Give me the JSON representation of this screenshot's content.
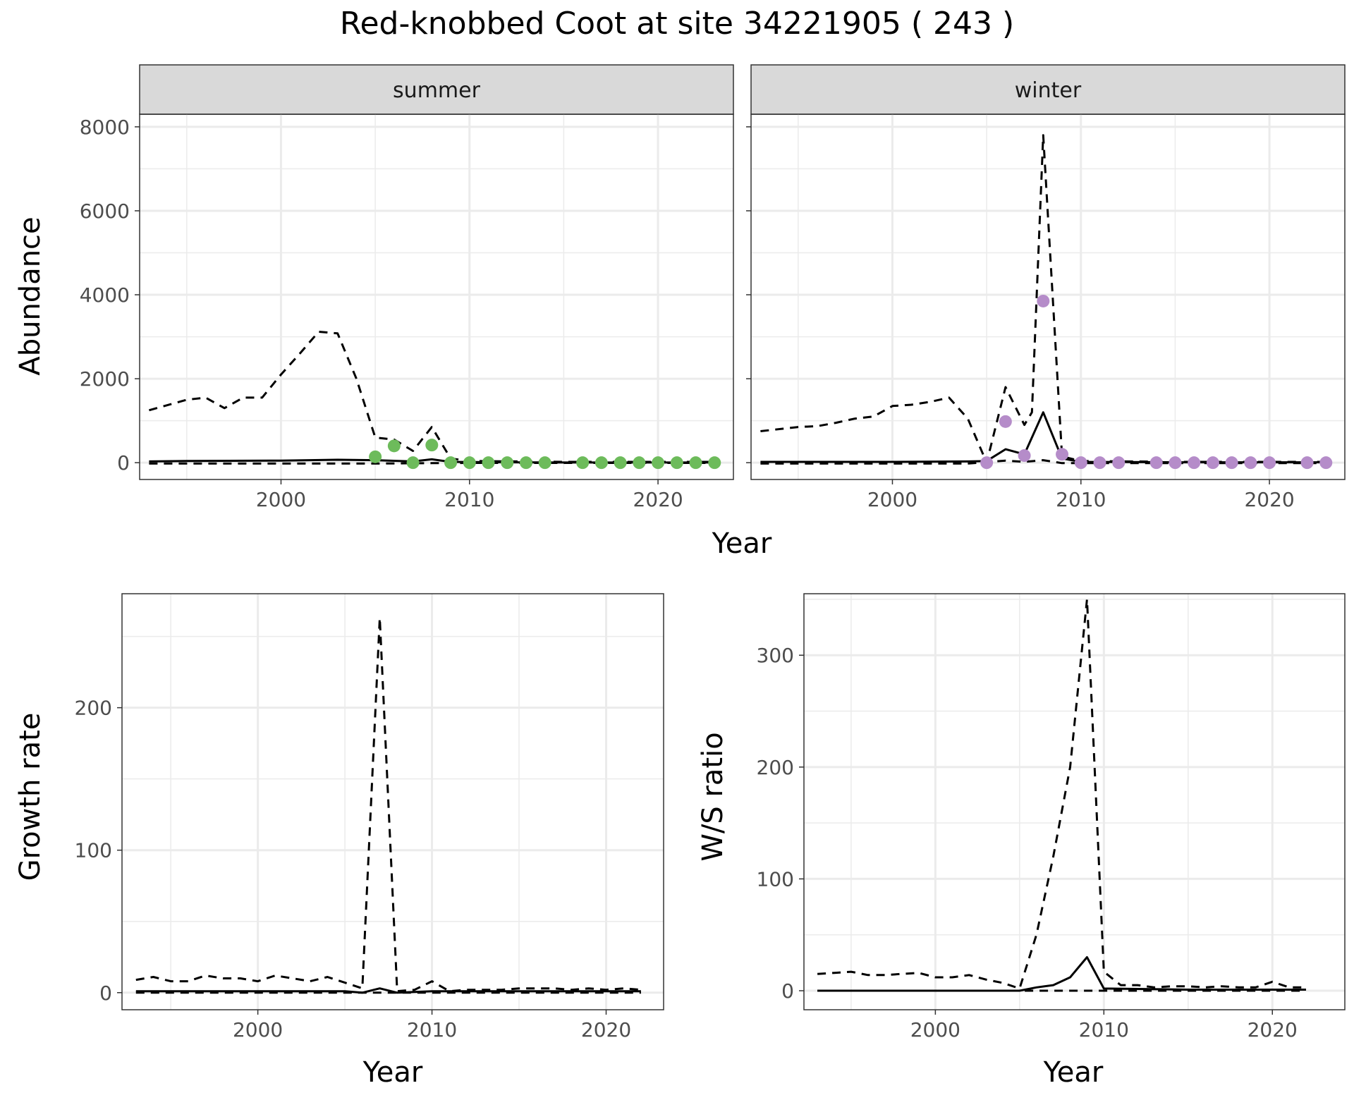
{
  "title": "Red-knobbed Coot at site 34221905 ( 243 )",
  "colors": {
    "summer_points": "#6dbb5b",
    "winter_points": "#b58cc9",
    "lines": "#000000",
    "strip_bg": "#d9d9d9",
    "grid": "#ebebeb"
  },
  "chart_data": [
    {
      "type": "line",
      "panel": "summer",
      "strip_label": "summer",
      "xlabel": "Year",
      "ylabel": "Abundance",
      "xlim": [
        1992.5,
        2024
      ],
      "ylim": [
        -400,
        8300
      ],
      "x_ticks": [
        2000,
        2010,
        2020
      ],
      "y_ticks": [
        0,
        2000,
        4000,
        6000,
        8000
      ],
      "grid": true,
      "series": [
        {
          "style": "solid",
          "x": [
            1993,
            1995,
            2000,
            2003,
            2005,
            2007,
            2008,
            2009,
            2012,
            2015,
            2020,
            2023
          ],
          "y": [
            30,
            40,
            50,
            70,
            60,
            30,
            80,
            20,
            10,
            5,
            5,
            5
          ]
        },
        {
          "style": "dashed",
          "x": [
            1993,
            1995,
            2000,
            2005,
            2008,
            2010,
            2015,
            2020,
            2023
          ],
          "y": [
            -20,
            -20,
            -20,
            -20,
            -10,
            -5,
            -5,
            -5,
            -5
          ]
        },
        {
          "style": "dashed",
          "x": [
            1993,
            1995,
            1996,
            1997,
            1998,
            1999,
            2000,
            2001,
            2002,
            2003,
            2004,
            2005,
            2006,
            2007,
            2008,
            2009,
            2010,
            2015,
            2020,
            2023
          ],
          "y": [
            1250,
            1500,
            1550,
            1300,
            1550,
            1550,
            2100,
            2600,
            3120,
            3080,
            2000,
            600,
            550,
            280,
            850,
            100,
            40,
            20,
            20,
            20
          ]
        }
      ],
      "points": {
        "x": [
          2005,
          2006,
          2007,
          2008,
          2009,
          2010,
          2011,
          2012,
          2013,
          2014,
          2016,
          2017,
          2018,
          2019,
          2020,
          2021,
          2022,
          2023
        ],
        "y": [
          140,
          400,
          0,
          420,
          0,
          0,
          0,
          0,
          0,
          0,
          0,
          0,
          0,
          0,
          0,
          0,
          0,
          0
        ]
      }
    },
    {
      "type": "line",
      "panel": "winter",
      "strip_label": "winter",
      "xlabel": "Year",
      "ylabel": "",
      "xlim": [
        1992.5,
        2024
      ],
      "ylim": [
        -400,
        8300
      ],
      "x_ticks": [
        2000,
        2010,
        2020
      ],
      "y_ticks": [
        0,
        2000,
        4000,
        6000,
        8000
      ],
      "grid": true,
      "series": [
        {
          "style": "solid",
          "x": [
            1993,
            2000,
            2004,
            2005,
            2006,
            2007,
            2008,
            2009,
            2010,
            2015,
            2020,
            2023
          ],
          "y": [
            20,
            20,
            30,
            40,
            320,
            200,
            1200,
            100,
            20,
            10,
            10,
            10
          ]
        },
        {
          "style": "dashed",
          "x": [
            1993,
            2000,
            2004,
            2006,
            2007,
            2008,
            2009,
            2010,
            2015,
            2020,
            2023
          ],
          "y": [
            -20,
            -20,
            -20,
            50,
            20,
            60,
            -10,
            -10,
            -10,
            -10,
            -10
          ]
        },
        {
          "style": "dashed",
          "x": [
            1993,
            1995,
            1996,
            1997,
            1998,
            1999,
            2000,
            2001,
            2002,
            2003,
            2004,
            2005,
            2006,
            2007,
            2007.4,
            2008,
            2009,
            2010,
            2015,
            2020,
            2023
          ],
          "y": [
            750,
            850,
            870,
            950,
            1050,
            1100,
            1350,
            1380,
            1450,
            1550,
            1050,
            0,
            1800,
            900,
            1200,
            7800,
            150,
            40,
            20,
            20,
            20
          ]
        }
      ],
      "points": {
        "x": [
          2005,
          2006,
          2007,
          2008,
          2009,
          2010,
          2011,
          2012,
          2014,
          2015,
          2016,
          2017,
          2018,
          2019,
          2020,
          2022,
          2023
        ],
        "y": [
          0,
          980,
          170,
          3850,
          200,
          0,
          0,
          0,
          0,
          0,
          0,
          0,
          0,
          0,
          0,
          0,
          0
        ]
      }
    },
    {
      "type": "line",
      "panel": "growth",
      "xlabel": "Year",
      "ylabel": "Growth rate",
      "xlim": [
        1992.2,
        2023.3
      ],
      "ylim": [
        -12,
        280
      ],
      "x_ticks": [
        2000,
        2010,
        2020
      ],
      "y_ticks": [
        0,
        100,
        200
      ],
      "grid": true,
      "series": [
        {
          "style": "solid",
          "x": [
            1993,
            2000,
            2005,
            2006,
            2007,
            2008,
            2010,
            2015,
            2020,
            2022
          ],
          "y": [
            1,
            1,
            1,
            0,
            3,
            0,
            1,
            1,
            1,
            1
          ]
        },
        {
          "style": "dashed",
          "x": [
            1993,
            2000,
            2005,
            2010,
            2015,
            2020,
            2022
          ],
          "y": [
            0,
            0,
            0,
            0,
            0,
            0,
            0
          ]
        },
        {
          "style": "dashed",
          "x": [
            1993,
            1994,
            1995,
            1996,
            1997,
            1998,
            1999,
            2000,
            2001,
            2002,
            2003,
            2004,
            2005,
            2006,
            2007,
            2008,
            2009,
            2010,
            2011,
            2012,
            2013,
            2014,
            2015,
            2016,
            2017,
            2018,
            2019,
            2020,
            2021,
            2022
          ],
          "y": [
            9,
            11,
            8,
            8,
            12,
            10,
            10,
            8,
            12,
            10,
            8,
            11,
            7,
            3,
            263,
            1,
            2,
            8,
            1,
            2,
            2,
            2,
            3,
            3,
            3,
            2,
            3,
            2,
            3,
            2
          ]
        }
      ]
    },
    {
      "type": "line",
      "panel": "ratio",
      "xlabel": "Year",
      "ylabel": "W/S ratio",
      "xlim": [
        1992.2,
        2024.3
      ],
      "ylim": [
        -17,
        355
      ],
      "x_ticks": [
        2000,
        2010,
        2020
      ],
      "y_ticks": [
        0,
        100,
        200,
        300
      ],
      "grid": true,
      "series": [
        {
          "style": "solid",
          "x": [
            1993,
            2000,
            2004,
            2005,
            2006,
            2007,
            2008,
            2009,
            2010,
            2015,
            2020,
            2022
          ],
          "y": [
            0,
            0,
            0,
            0,
            3,
            5,
            12,
            30,
            2,
            1,
            1,
            1
          ]
        },
        {
          "style": "dashed",
          "x": [
            1993,
            2000,
            2004,
            2005,
            2010,
            2015,
            2020,
            2022
          ],
          "y": [
            0,
            0,
            0,
            0,
            0,
            0,
            0,
            0
          ]
        },
        {
          "style": "dashed",
          "x": [
            1993,
            1994,
            1995,
            1996,
            1997,
            1998,
            1999,
            2000,
            2001,
            2002,
            2003,
            2004,
            2005,
            2006,
            2007,
            2008,
            2009,
            2010,
            2011,
            2012,
            2013,
            2014,
            2015,
            2016,
            2017,
            2018,
            2019,
            2020,
            2021,
            2022
          ],
          "y": [
            15,
            16,
            17,
            14,
            14,
            15,
            16,
            12,
            12,
            14,
            10,
            7,
            2,
            50,
            120,
            200,
            350,
            17,
            5,
            5,
            3,
            4,
            4,
            3,
            4,
            3,
            3,
            8,
            3,
            3
          ]
        }
      ]
    }
  ]
}
